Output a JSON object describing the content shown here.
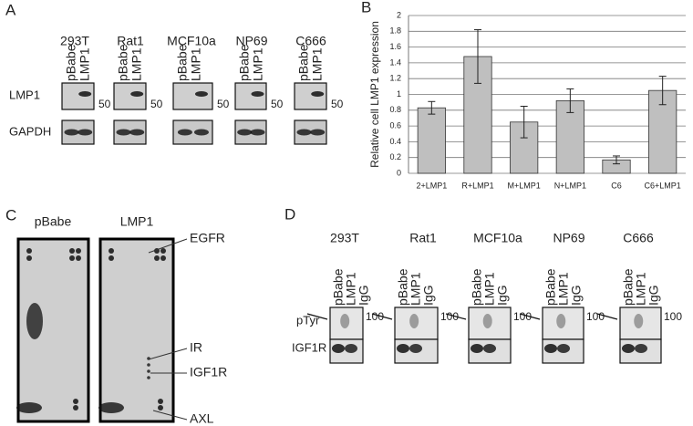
{
  "panel_labels": [
    "A",
    "B",
    "C",
    "D"
  ],
  "panel_a": {
    "cell_lines": [
      "293T",
      "Rat1",
      "MCF10a",
      "NP69",
      "C666"
    ],
    "lanes": [
      "pBabe",
      "LMP1"
    ],
    "rows": [
      "LMP1",
      "GAPDH"
    ],
    "size_marker": "50"
  },
  "chart_data": {
    "type": "bar",
    "y_label": "Relative cell LMP1 expression",
    "categories": [
      "2+LMP1",
      "R+LMP1",
      "M+LMP1",
      "N+LMP1",
      "C6",
      "C6+LMP1"
    ],
    "values": [
      0.83,
      1.48,
      0.65,
      0.92,
      0.17,
      1.05
    ],
    "errors": [
      0.08,
      0.34,
      0.2,
      0.15,
      0.05,
      0.18
    ],
    "color": "#bfbfbf",
    "ylim": [
      0,
      2
    ],
    "yticks": [
      0,
      0.2,
      0.4,
      0.6,
      0.8,
      1,
      1.2,
      1.4,
      1.6,
      1.8,
      2
    ],
    "grid": true
  },
  "panel_c": {
    "conditions": [
      "pBabe",
      "LMP1"
    ],
    "receptors": [
      "EGFR",
      "IR",
      "IGF1R",
      "AXL"
    ]
  },
  "panel_d": {
    "cell_lines": [
      "293T",
      "Rat1",
      "MCF10a",
      "NP69",
      "C666"
    ],
    "lanes": [
      "pBabe",
      "LMP1",
      "IgG"
    ],
    "rows": [
      "pTyr",
      "IGF1R"
    ],
    "size_marker": "100"
  }
}
